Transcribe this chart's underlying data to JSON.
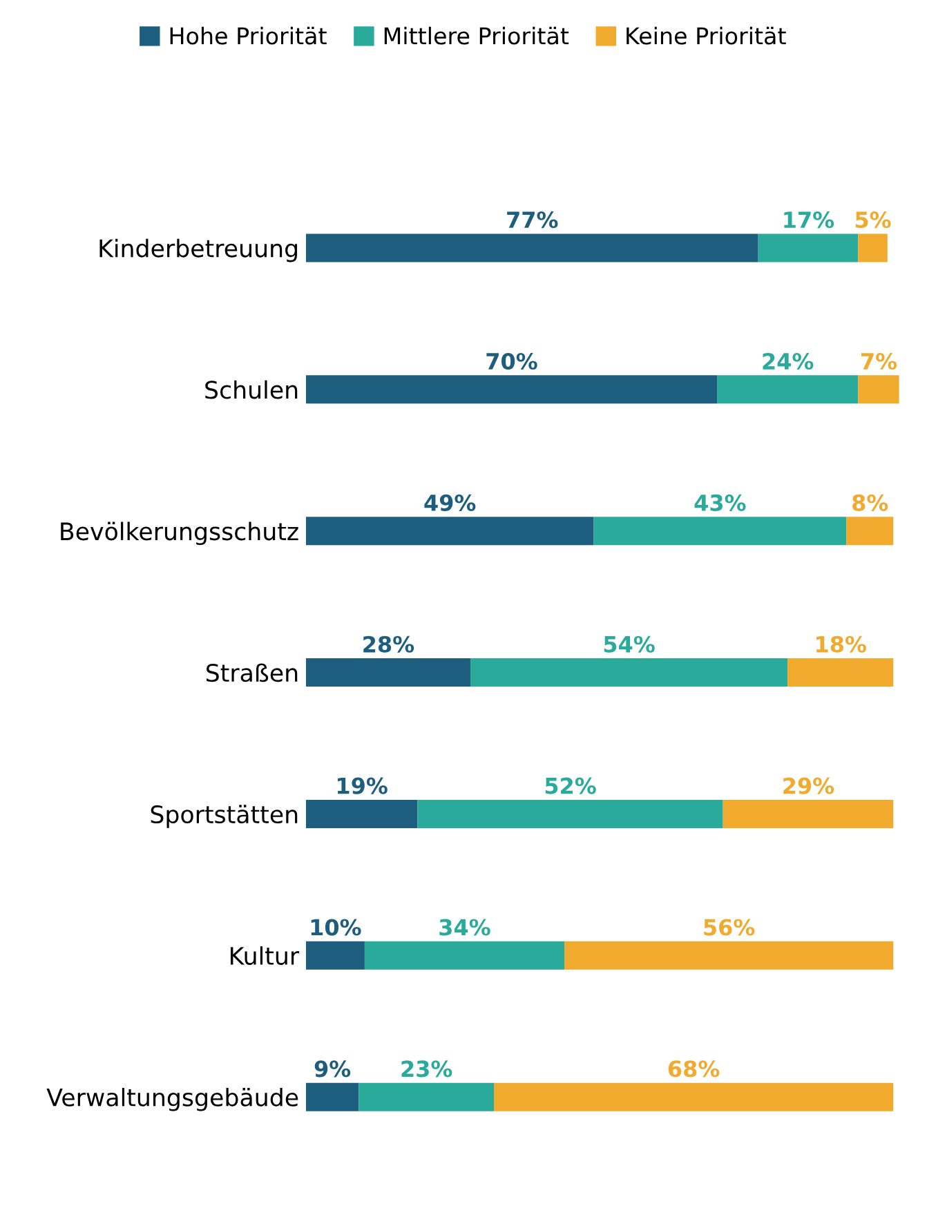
{
  "chart_data": {
    "type": "bar",
    "orientation": "horizontal",
    "stacked": true,
    "legend": "top",
    "grid": false,
    "categories": [
      "Kinderbetreuung",
      "Schulen",
      "Bevölkerungsschutz",
      "Straßen",
      "Sportstätten",
      "Kultur",
      "Verwaltungsgebäude"
    ],
    "series": [
      {
        "name": "Hohe Priorität",
        "color": "#1d5d7e",
        "values": [
          77,
          70,
          49,
          28,
          19,
          10,
          9
        ],
        "value_labels": [
          "77%",
          "70%",
          "49%",
          "28%",
          "19%",
          "10%",
          "9%"
        ]
      },
      {
        "name": "Mittlere Priorität",
        "color": "#2aaa9a",
        "values": [
          17,
          24,
          43,
          54,
          52,
          34,
          23
        ],
        "value_labels": [
          "17%",
          "24%",
          "43%",
          "54%",
          "52%",
          "34%",
          "23%"
        ]
      },
      {
        "name": "Keine Priorität",
        "color": "#f0aa2e",
        "values": [
          5,
          7,
          8,
          18,
          29,
          56,
          68
        ],
        "value_labels": [
          "5%",
          "7%",
          "8%",
          "18%",
          "29%",
          "56%",
          "68%"
        ]
      }
    ]
  }
}
